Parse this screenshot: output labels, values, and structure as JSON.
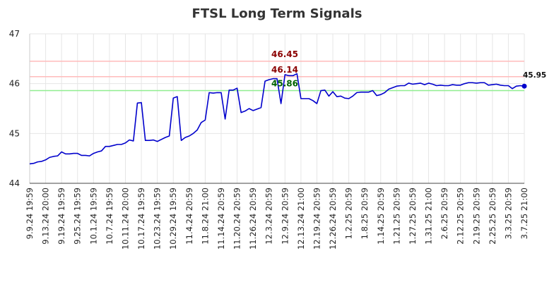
{
  "chart_data": {
    "type": "line",
    "title": "FTSL Long Term Signals",
    "xlabel": "",
    "ylabel": "",
    "ylim": [
      44,
      47
    ],
    "yticks": [
      "44",
      "45",
      "46",
      "47"
    ],
    "grid": true,
    "x_tick_labels": [
      "9.9.24 19:59",
      "9.13.24 20:00",
      "9.19.24 19:59",
      "9.25.24 19:59",
      "10.1.24 19:59",
      "10.7.24 19:59",
      "10.11.24 20:00",
      "10.17.24 19:59",
      "10.23.24 19:59",
      "10.29.24 19:59",
      "11.4.24 20:59",
      "11.8.24 21:00",
      "11.14.24 20:59",
      "11.20.24 20:59",
      "11.26.24 20:59",
      "12.3.24 20:59",
      "12.9.24 20:59",
      "12.13.24 21:00",
      "12.19.24 20:59",
      "12.26.24 20:59",
      "1.2.25 20:59",
      "1.8.25 20:59",
      "1.14.25 20:59",
      "1.21.25 20:59",
      "1.27.25 20:59",
      "1.31.25 21:00",
      "2.6.25 20:59",
      "2.12.25 20:59",
      "2.19.25 20:59",
      "2.25.25 20:59",
      "3.3.25 20:59",
      "3.7.25 21:00"
    ],
    "reference_lines": [
      {
        "label": "46.45",
        "value": 46.45,
        "color": "#ffbbbb",
        "text_color": "#8b0000"
      },
      {
        "label": "46.14",
        "value": 46.14,
        "color": "#ffbbbb",
        "text_color": "#8b0000"
      },
      {
        "label": "45.86",
        "value": 45.86,
        "color": "#90ee90",
        "text_color": "#006400"
      }
    ],
    "last_value_label": "45.95",
    "series": [
      {
        "color": "#0000cc",
        "values": [
          44.39,
          44.4,
          44.43,
          44.44,
          44.47,
          44.52,
          44.54,
          44.55,
          44.63,
          44.59,
          44.59,
          44.6,
          44.6,
          44.56,
          44.56,
          44.55,
          44.6,
          44.63,
          44.65,
          44.74,
          44.74,
          44.76,
          44.78,
          44.78,
          44.81,
          44.87,
          44.85,
          45.61,
          45.62,
          44.86,
          44.86,
          44.87,
          44.84,
          44.88,
          44.92,
          44.95,
          45.71,
          45.74,
          44.86,
          44.92,
          44.95,
          45.0,
          45.07,
          45.22,
          45.27,
          45.82,
          45.81,
          45.82,
          45.82,
          45.29,
          45.87,
          45.87,
          45.91,
          45.42,
          45.45,
          45.5,
          45.46,
          45.49,
          45.52,
          46.05,
          46.08,
          46.1,
          46.1,
          45.6,
          46.18,
          46.16,
          46.16,
          46.2,
          45.7,
          45.7,
          45.7,
          45.66,
          45.6,
          45.86,
          45.87,
          45.75,
          45.84,
          45.74,
          45.75,
          45.71,
          45.7,
          45.75,
          45.82,
          45.83,
          45.83,
          45.83,
          45.86,
          45.76,
          45.78,
          45.82,
          45.89,
          45.92,
          45.95,
          45.96,
          45.96,
          46.01,
          45.99,
          46.0,
          46.01,
          45.98,
          46.01,
          45.99,
          45.96,
          45.97,
          45.96,
          45.96,
          45.98,
          45.97,
          45.97,
          46.0,
          46.02,
          46.02,
          46.01,
          46.02,
          46.02,
          45.97,
          45.98,
          45.99,
          45.97,
          45.96,
          45.96,
          45.9,
          45.95,
          45.96,
          45.95
        ]
      }
    ]
  }
}
